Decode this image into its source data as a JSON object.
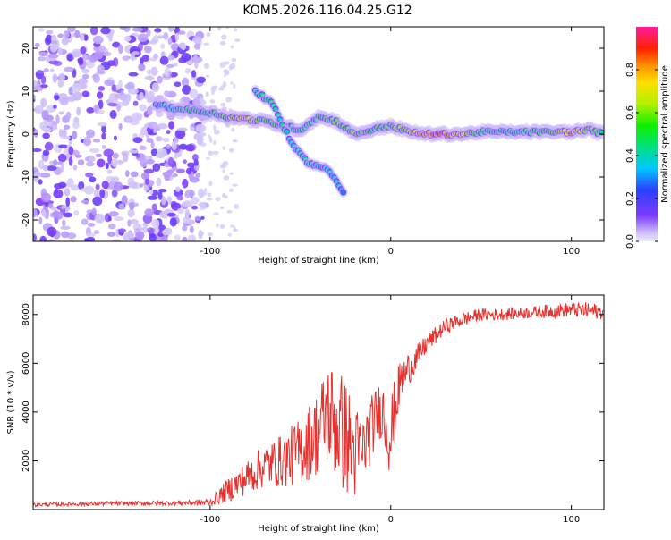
{
  "title": "KOM5.2026.116.04.25.G12",
  "colors": {
    "trace": "#e8302d",
    "axis": "#000000",
    "background": "#ffffff"
  },
  "chart_data": [
    {
      "type": "heatmap",
      "name": "spectrogram",
      "xlabel": "Height of straight line (km)",
      "ylabel": "Frequency (Hz)",
      "xlim": [
        -198,
        118
      ],
      "ylim": [
        -25,
        25
      ],
      "xticks": [
        -100,
        0,
        100
      ],
      "yticks": [
        -20,
        -10,
        0,
        10,
        20
      ],
      "colorbar": {
        "label": "Normalized spectral amplitude",
        "range": [
          0,
          1
        ],
        "ticks": [
          0.0,
          0.2,
          0.4,
          0.6,
          0.8
        ]
      },
      "ridge": [
        {
          "x": -130,
          "f": 7,
          "amp": 0.35
        },
        {
          "x": -120,
          "f": 6,
          "amp": 0.45
        },
        {
          "x": -110,
          "f": 5.5,
          "amp": 0.5
        },
        {
          "x": -100,
          "f": 5,
          "amp": 0.5
        },
        {
          "x": -90,
          "f": 4,
          "amp": 0.6
        },
        {
          "x": -80,
          "f": 3.5,
          "amp": 0.75
        },
        {
          "x": -70,
          "f": 3,
          "amp": 0.55
        },
        {
          "x": -60,
          "f": 2,
          "amp": 0.5
        },
        {
          "x": -50,
          "f": 1,
          "amp": 0.45
        },
        {
          "x": -40,
          "f": 4,
          "amp": 0.5
        },
        {
          "x": -30,
          "f": 3,
          "amp": 0.55
        },
        {
          "x": -20,
          "f": 0,
          "amp": 0.6
        },
        {
          "x": -10,
          "f": 1,
          "amp": 0.5
        },
        {
          "x": 0,
          "f": 2,
          "amp": 0.55
        },
        {
          "x": 10,
          "f": 0.5,
          "amp": 0.7
        },
        {
          "x": 20,
          "f": 0,
          "amp": 0.85
        },
        {
          "x": 30,
          "f": 0,
          "amp": 0.9
        },
        {
          "x": 40,
          "f": 0,
          "amp": 0.7
        },
        {
          "x": 50,
          "f": 0.5,
          "amp": 0.5
        },
        {
          "x": 60,
          "f": 0.5,
          "amp": 0.45
        },
        {
          "x": 70,
          "f": 0.5,
          "amp": 0.45
        },
        {
          "x": 80,
          "f": 0.5,
          "amp": 0.5
        },
        {
          "x": 90,
          "f": 0.5,
          "amp": 0.55
        },
        {
          "x": 100,
          "f": 0.5,
          "amp": 0.85
        },
        {
          "x": 110,
          "f": 1,
          "amp": 0.6
        },
        {
          "x": 118,
          "f": 0,
          "amp": 0.5
        }
      ],
      "branch": [
        {
          "x": -75,
          "f": 10,
          "amp": 0.4
        },
        {
          "x": -65,
          "f": 7,
          "amp": 0.45
        },
        {
          "x": -55,
          "f": -2,
          "amp": 0.4
        },
        {
          "x": -45,
          "f": -7,
          "amp": 0.4
        },
        {
          "x": -35,
          "f": -8,
          "amp": 0.35
        },
        {
          "x": -25,
          "f": -14,
          "amp": 0.3
        }
      ]
    },
    {
      "type": "line",
      "name": "snr",
      "xlabel": "Height of straight line (km)",
      "ylabel": "SNR (10 * v/v)",
      "xlim": [
        -198,
        118
      ],
      "ylim": [
        0,
        8800
      ],
      "xticks": [
        -100,
        0,
        100
      ],
      "yticks": [
        2000,
        4000,
        6000,
        8000
      ],
      "x": [
        -198,
        -180,
        -160,
        -140,
        -120,
        -100,
        -90,
        -80,
        -70,
        -60,
        -50,
        -40,
        -35,
        -30,
        -25,
        -20,
        -15,
        -10,
        -5,
        0,
        5,
        10,
        15,
        20,
        30,
        40,
        50,
        60,
        70,
        80,
        90,
        100,
        110,
        118
      ],
      "y": [
        200,
        220,
        250,
        260,
        270,
        300,
        800,
        1300,
        1800,
        2000,
        2400,
        3200,
        4000,
        3500,
        3000,
        2300,
        2500,
        3500,
        4200,
        3000,
        5200,
        5800,
        6300,
        6800,
        7500,
        7800,
        8000,
        8000,
        8050,
        8100,
        8150,
        8200,
        8150,
        8100
      ],
      "noise": [
        80,
        80,
        90,
        90,
        100,
        150,
        500,
        700,
        900,
        1100,
        1400,
        1800,
        2200,
        2500,
        2400,
        2000,
        1500,
        1300,
        1200,
        1800,
        900,
        700,
        500,
        400,
        300,
        300,
        250,
        250,
        250,
        250,
        300,
        300,
        350,
        300
      ]
    }
  ]
}
